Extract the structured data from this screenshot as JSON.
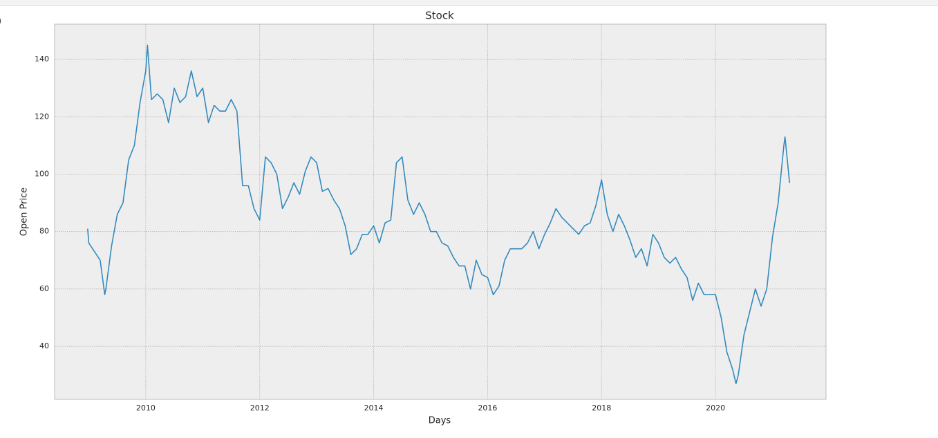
{
  "prompt": ")",
  "chart_data": {
    "type": "line",
    "title": "Stock",
    "x_label": "Days",
    "y_label": "Open Price",
    "color": "#348abd",
    "grid": true,
    "xlim": [
      2008.4,
      2021.94
    ],
    "ylim": [
      21.5,
      152.3
    ],
    "xticks": [
      2010,
      2012,
      2014,
      2016,
      2018,
      2020
    ],
    "yticks": [
      40,
      60,
      80,
      100,
      120,
      140
    ],
    "x": [
      2008.98,
      2009.0,
      2009.1,
      2009.2,
      2009.28,
      2009.3,
      2009.4,
      2009.5,
      2009.6,
      2009.7,
      2009.8,
      2009.9,
      2010.0,
      2010.03,
      2010.1,
      2010.2,
      2010.3,
      2010.4,
      2010.5,
      2010.6,
      2010.7,
      2010.8,
      2010.9,
      2011.0,
      2011.1,
      2011.2,
      2011.3,
      2011.4,
      2011.5,
      2011.6,
      2011.7,
      2011.8,
      2011.9,
      2012.0,
      2012.1,
      2012.2,
      2012.3,
      2012.4,
      2012.5,
      2012.6,
      2012.7,
      2012.8,
      2012.9,
      2013.0,
      2013.1,
      2013.2,
      2013.3,
      2013.4,
      2013.5,
      2013.6,
      2013.7,
      2013.8,
      2013.9,
      2014.0,
      2014.1,
      2014.2,
      2014.3,
      2014.4,
      2014.5,
      2014.6,
      2014.7,
      2014.8,
      2014.9,
      2015.0,
      2015.1,
      2015.2,
      2015.3,
      2015.4,
      2015.5,
      2015.6,
      2015.7,
      2015.8,
      2015.9,
      2016.0,
      2016.1,
      2016.2,
      2016.3,
      2016.4,
      2016.5,
      2016.6,
      2016.7,
      2016.8,
      2016.9,
      2017.0,
      2017.1,
      2017.2,
      2017.3,
      2017.4,
      2017.5,
      2017.6,
      2017.7,
      2017.8,
      2017.9,
      2018.0,
      2018.1,
      2018.2,
      2018.3,
      2018.4,
      2018.5,
      2018.6,
      2018.7,
      2018.8,
      2018.9,
      2019.0,
      2019.1,
      2019.2,
      2019.3,
      2019.4,
      2019.5,
      2019.6,
      2019.7,
      2019.8,
      2019.9,
      2020.0,
      2020.1,
      2020.2,
      2020.3,
      2020.36,
      2020.4,
      2020.5,
      2020.6,
      2020.7,
      2020.8,
      2020.9,
      2021.0,
      2021.1,
      2021.2,
      2021.22,
      2021.3
    ],
    "values": [
      81,
      76,
      73,
      70,
      58,
      60,
      75,
      86,
      90,
      105,
      110,
      125,
      136,
      145,
      126,
      128,
      126,
      118,
      130,
      125,
      127,
      136,
      127,
      130,
      118,
      124,
      122,
      122,
      126,
      122,
      96,
      96,
      88,
      84,
      106,
      104,
      100,
      88,
      92,
      97,
      93,
      101,
      106,
      104,
      94,
      95,
      91,
      88,
      82,
      72,
      74,
      79,
      79,
      82,
      76,
      83,
      84,
      104,
      106,
      91,
      86,
      90,
      86,
      80,
      80,
      76,
      75,
      71,
      68,
      68,
      60,
      70,
      65,
      64,
      58,
      61,
      70,
      74,
      74,
      74,
      76,
      80,
      74,
      79,
      83,
      88,
      85,
      83,
      81,
      79,
      82,
      83,
      89,
      98,
      86,
      80,
      86,
      82,
      77,
      71,
      74,
      68,
      79,
      76,
      71,
      69,
      71,
      67,
      64,
      56,
      62,
      58,
      58,
      58,
      50,
      38,
      32,
      27,
      30,
      44,
      52,
      60,
      54,
      60,
      78,
      90,
      110,
      113,
      97
    ]
  }
}
